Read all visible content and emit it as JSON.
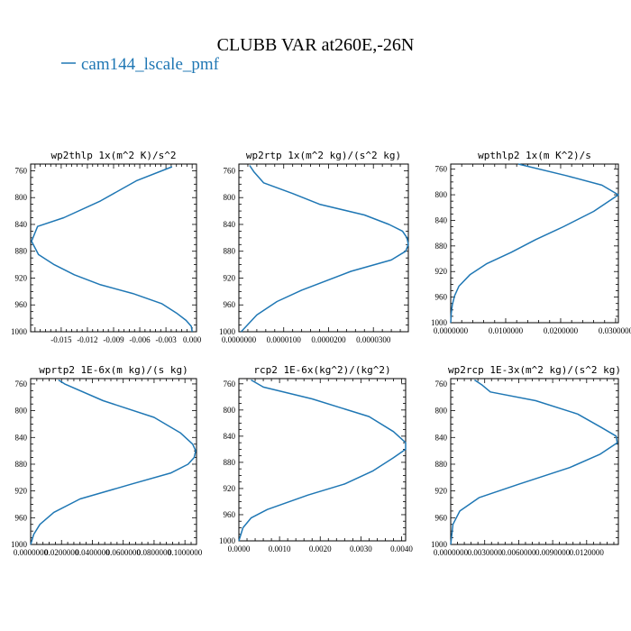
{
  "figure": {
    "title": "CLUBB VAR at260E,-26N",
    "legend": "cam144_lscale_pmf",
    "line_color": "#1f77b4"
  },
  "chart_data": [
    {
      "type": "line",
      "title": "wp2thlp  1x(m^2 K)/s^2",
      "series": [
        {
          "name": "cam144_lscale_pmf",
          "x": [
            -0.0023,
            -0.0064,
            -0.0105,
            -0.0147,
            -0.0177,
            -0.0184,
            -0.0176,
            -0.0158,
            -0.0135,
            -0.0105,
            -0.0068,
            -0.0035,
            -0.0018,
            -0.0007,
            -0.0001,
            0.0
          ],
          "y": [
            754,
            775,
            805,
            830,
            843,
            865,
            885,
            900,
            915,
            930,
            943,
            958,
            972,
            983,
            992,
            1000
          ]
        }
      ],
      "xlim": [
        -0.0185,
        0.0005
      ],
      "ylim": [
        1000,
        750
      ],
      "xticks": [
        -0.015,
        -0.012,
        -0.009,
        -0.006,
        -0.003,
        0.0
      ],
      "xtick_labels": [
        "-0.015",
        "-0.012",
        "-0.009",
        "-0.006",
        "-0.003",
        "0.000"
      ],
      "yticks": [
        760,
        800,
        840,
        880,
        920,
        960,
        1000
      ],
      "ytick_labels": [
        "760",
        "800",
        "840",
        "880",
        "920",
        "960",
        "1000"
      ]
    },
    {
      "type": "line",
      "title": "wp2rtp  1x(m^2 kg)/(s^2 kg)",
      "series": [
        {
          "name": "cam144_lscale_pmf",
          "x": [
            2.4e-06,
            3.4e-06,
            5.5e-06,
            1.2e-05,
            1.8e-05,
            2.8e-05,
            3.35e-05,
            3.65e-05,
            3.75e-05,
            3.78e-05,
            3.72e-05,
            3.4e-05,
            2.5e-05,
            1.4e-05,
            8.5e-06,
            4e-06,
            5e-07
          ],
          "y": [
            752,
            762,
            778,
            794,
            810,
            826,
            840,
            850,
            860,
            870,
            880,
            893,
            910,
            938,
            955,
            975,
            1000
          ]
        }
      ],
      "xlim": [
        0.0,
        3.78e-05
      ],
      "ylim": [
        1000,
        750
      ],
      "xticks": [
        0.0,
        1e-05,
        2e-05,
        3e-05
      ],
      "xtick_labels": [
        "0.0000000",
        "0.0000100",
        "0.0000200",
        "0.0000300"
      ],
      "yticks": [
        760,
        800,
        840,
        880,
        920,
        960,
        1000
      ],
      "ytick_labels": [
        "760",
        "800",
        "840",
        "880",
        "920",
        "960",
        "1000"
      ]
    },
    {
      "type": "line",
      "title": "wpthlp2  1x(m K^2)/s",
      "series": [
        {
          "name": "cam144_lscale_pmf",
          "x": [
            0.0123,
            0.021,
            0.0275,
            0.0305,
            0.026,
            0.0205,
            0.0155,
            0.011,
            0.0065,
            0.0035,
            0.0015,
            0.0007,
            0.0003,
            0.0001,
            0.0
          ],
          "y": [
            752,
            770,
            785,
            800,
            826,
            850,
            870,
            890,
            908,
            925,
            943,
            958,
            972,
            985,
            1000
          ]
        }
      ],
      "xlim": [
        0.0,
        0.0305
      ],
      "ylim": [
        1000,
        752
      ],
      "xticks": [
        0.0,
        0.01,
        0.02,
        0.03
      ],
      "xtick_labels": [
        "0.0000000",
        "0.0100000",
        "0.0200000",
        "0.0300000"
      ],
      "yticks": [
        760,
        800,
        840,
        880,
        920,
        960,
        1000
      ],
      "ytick_labels": [
        "760",
        "800",
        "840",
        "880",
        "920",
        "960",
        "1000"
      ]
    },
    {
      "type": "line",
      "title": "wprtp2  1E-6x(m kg)/(s kg)",
      "series": [
        {
          "name": "cam144_lscale_pmf",
          "x": [
            0.018,
            0.022,
            0.047,
            0.08,
            0.097,
            0.105,
            0.107,
            0.106,
            0.102,
            0.091,
            0.065,
            0.032,
            0.015,
            0.006,
            0.002,
            0.0
          ],
          "y": [
            754,
            760,
            785,
            810,
            833,
            850,
            860,
            870,
            880,
            893,
            910,
            932,
            952,
            970,
            985,
            1000
          ]
        }
      ],
      "xlim": [
        0.0,
        0.1075
      ],
      "ylim": [
        1000,
        752
      ],
      "xticks": [
        0.0,
        0.02,
        0.04,
        0.06,
        0.08,
        0.1
      ],
      "xtick_labels": [
        "0.0000000",
        "0.0200000",
        "0.0400000",
        "0.0600000",
        "0.0800000",
        "0.1000000"
      ],
      "yticks": [
        760,
        800,
        840,
        880,
        920,
        960,
        1000
      ],
      "ytick_labels": [
        "760",
        "800",
        "840",
        "880",
        "920",
        "960",
        "1000"
      ]
    },
    {
      "type": "line",
      "title": "rcp2  1E-6x(kg^2)/(kg^2)",
      "series": [
        {
          "name": "cam144_lscale_pmf",
          "x": [
            0.0003,
            0.0006,
            0.0018,
            0.0032,
            0.0038,
            0.0041,
            0.0041,
            0.0038,
            0.0033,
            0.0026,
            0.0017,
            0.0007,
            0.0003,
            0.0001,
            0.0
          ],
          "y": [
            754,
            765,
            783,
            810,
            833,
            850,
            860,
            873,
            893,
            913,
            930,
            952,
            965,
            980,
            1000
          ]
        }
      ],
      "xlim": [
        0.0,
        0.0041
      ],
      "ylim": [
        1000,
        752
      ],
      "xticks": [
        0.0,
        0.001,
        0.002,
        0.003,
        0.004
      ],
      "xtick_labels": [
        "0.0000",
        "0.0010",
        "0.0020",
        "0.0030",
        "0.0040"
      ],
      "yticks": [
        760,
        800,
        840,
        880,
        920,
        960,
        1000
      ],
      "ytick_labels": [
        "760",
        "800",
        "840",
        "880",
        "920",
        "960",
        "1000"
      ]
    },
    {
      "type": "line",
      "title": "wp2rcp  1E-3x(m^2 kg)/(s^2 kg)",
      "series": [
        {
          "name": "cam144_lscale_pmf",
          "x": [
            0.0021,
            0.0028,
            0.0035,
            0.0075,
            0.0112,
            0.0133,
            0.0146,
            0.0147,
            0.0132,
            0.0105,
            0.006,
            0.0025,
            0.0008,
            0.0002,
            0.0
          ],
          "y": [
            754,
            762,
            772,
            785,
            805,
            825,
            838,
            848,
            865,
            885,
            910,
            930,
            950,
            970,
            1000
          ]
        }
      ],
      "xlim": [
        0.0,
        0.0148
      ],
      "ylim": [
        1000,
        752
      ],
      "xticks": [
        0.0,
        0.003,
        0.006,
        0.009,
        0.012
      ],
      "xtick_labels": [
        "0.0000000",
        "0.0030000",
        "0.0060000",
        "0.0090000",
        "0.0120000"
      ],
      "yticks": [
        760,
        800,
        840,
        880,
        920,
        960,
        1000
      ],
      "ytick_labels": [
        "760",
        "800",
        "840",
        "880",
        "920",
        "960",
        "1000"
      ]
    }
  ]
}
